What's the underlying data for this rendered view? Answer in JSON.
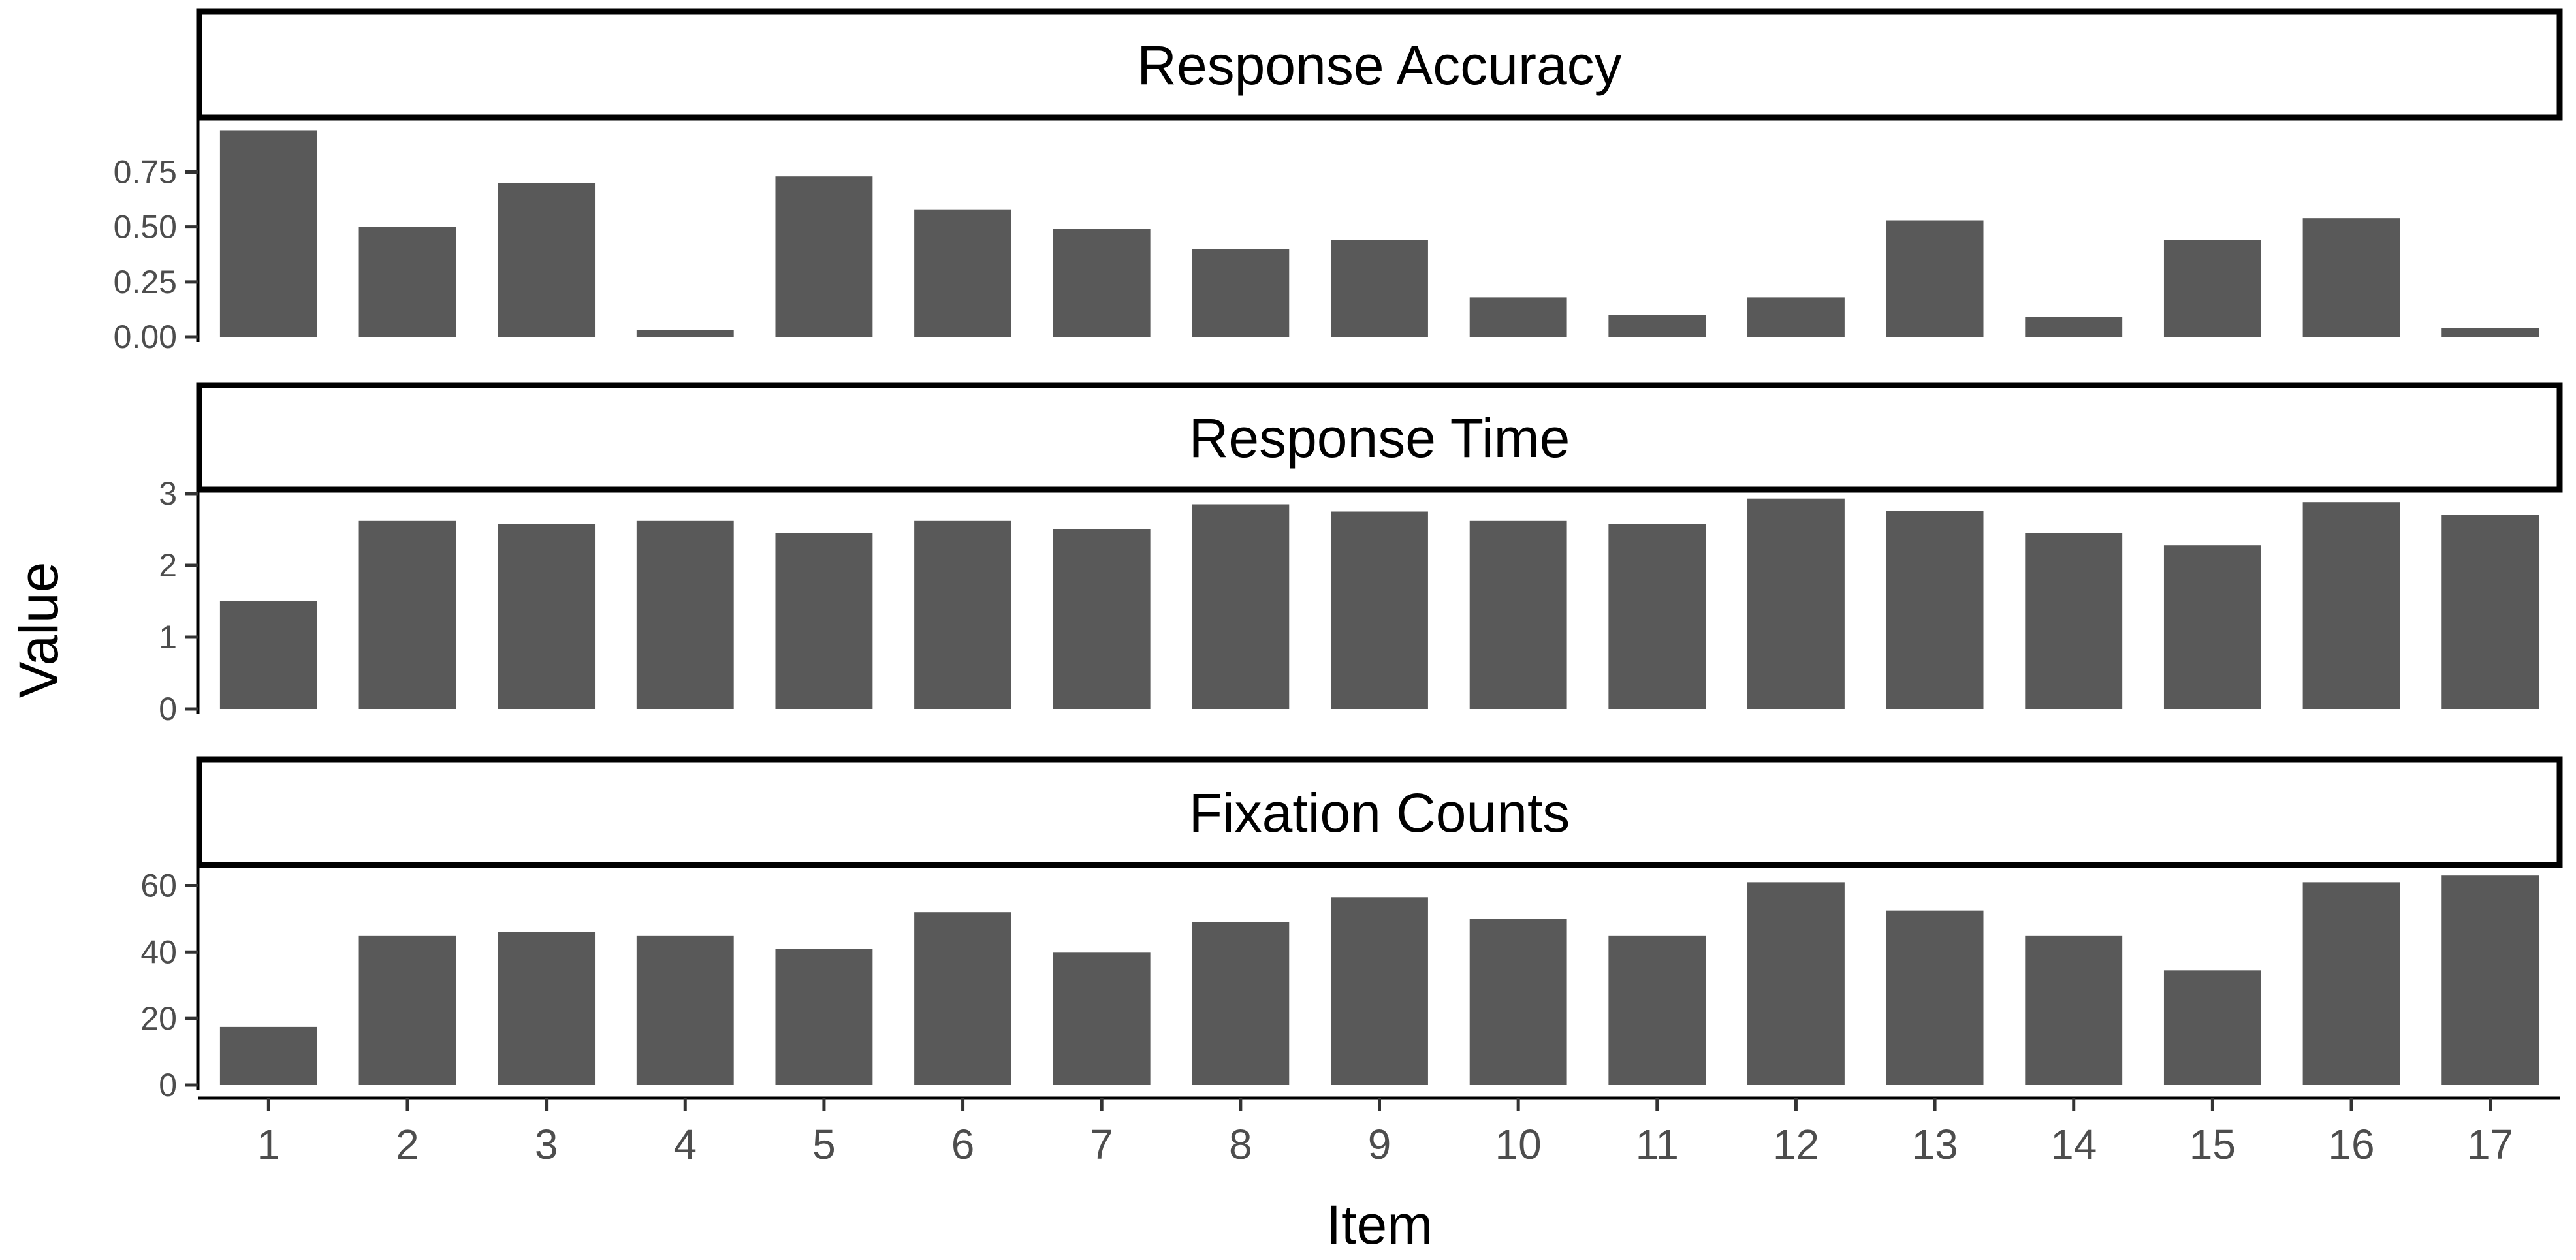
{
  "chart_data": {
    "type": "bar",
    "layout": "faceted-vertical",
    "xlabel": "Item",
    "ylabel": "Value",
    "categories": [
      "1",
      "2",
      "3",
      "4",
      "5",
      "6",
      "7",
      "8",
      "9",
      "10",
      "11",
      "12",
      "13",
      "14",
      "15",
      "16",
      "17"
    ],
    "bar_color": "#595959",
    "facets": [
      {
        "name": "Response Accuracy",
        "ylim": [
          0,
          0.98
        ],
        "yticks": [
          0,
          0.25,
          0.5,
          0.75
        ],
        "ytick_labels": [
          "0.00",
          "0.25",
          "0.50",
          "0.75"
        ],
        "values": [
          0.94,
          0.5,
          0.7,
          0.03,
          0.73,
          0.58,
          0.49,
          0.4,
          0.44,
          0.18,
          0.1,
          0.18,
          0.53,
          0.09,
          0.44,
          0.54,
          0.04
        ]
      },
      {
        "name": "Response Time",
        "ylim": [
          0,
          3.0
        ],
        "yticks": [
          0,
          1,
          2,
          3
        ],
        "ytick_labels": [
          "0",
          "1",
          "2",
          "3"
        ],
        "values": [
          1.5,
          2.62,
          2.58,
          2.62,
          2.45,
          2.62,
          2.5,
          2.85,
          2.75,
          2.62,
          2.58,
          2.93,
          2.76,
          2.45,
          2.28,
          2.88,
          2.7
        ]
      },
      {
        "name": "Fixation Counts",
        "ylim": [
          0,
          65
        ],
        "yticks": [
          0,
          20,
          40,
          60
        ],
        "ytick_labels": [
          "0",
          "20",
          "40",
          "60"
        ],
        "values": [
          17.5,
          45,
          46,
          45,
          41,
          52,
          40,
          49,
          56.5,
          50,
          45,
          61,
          52.5,
          45,
          34.5,
          61,
          63
        ]
      }
    ]
  }
}
